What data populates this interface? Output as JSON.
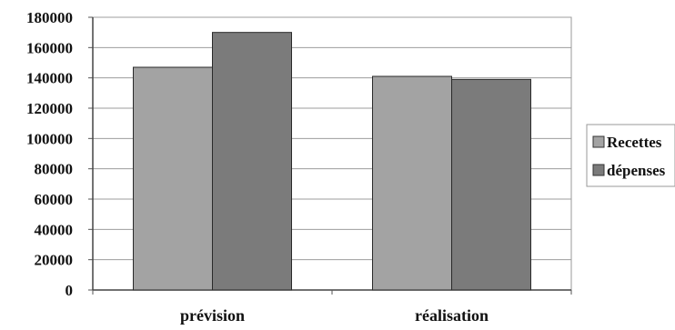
{
  "chart_data": {
    "type": "bar",
    "title": "",
    "xlabel": "",
    "ylabel": "",
    "categories": [
      "prévision",
      "réalisation"
    ],
    "series": [
      {
        "name": "Recettes",
        "values": [
          147000,
          141000
        ],
        "color": "#a3a3a3"
      },
      {
        "name": "dépenses",
        "values": [
          170000,
          139000
        ],
        "color": "#7b7b7b"
      }
    ],
    "ylim": [
      0,
      180000
    ],
    "yticks": [
      "0",
      "20000",
      "40000",
      "60000",
      "80000",
      "100000",
      "120000",
      "140000",
      "160000",
      "180000"
    ],
    "grid": true,
    "legend": "right"
  }
}
